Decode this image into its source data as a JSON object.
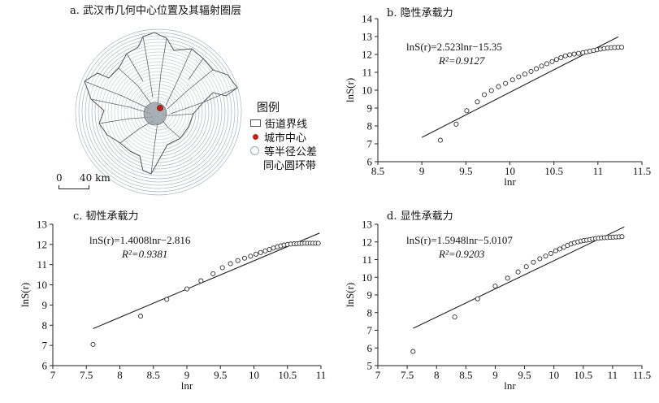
{
  "map_panel": {
    "title": "a. 武汉市几何中心位置及其辐射圈层",
    "legend": {
      "title": "图例",
      "items": [
        {
          "label": "街道界线",
          "icon": "rectangle-outline-icon"
        },
        {
          "label": "城市中心",
          "icon": "red-dot-icon",
          "color": "#c0221a"
        },
        {
          "label": "等半径公差",
          "label2": "同心圆环带",
          "icon": "circle-outline-icon",
          "color": "#9aa9b3"
        }
      ]
    },
    "scalebar": {
      "start": "0",
      "end": "40 km"
    }
  },
  "chart_data": [
    {
      "type": "scatter",
      "title": "b. 隐性承载力",
      "equation": "lnS(r)=2.523lnr−15.35",
      "r2": "R²=0.9127",
      "xlabel": "lnr",
      "ylabel": "lnS(r)",
      "xlim": [
        8.5,
        11.5
      ],
      "ylim": [
        6,
        14
      ],
      "xticks": [
        8.5,
        9,
        9.5,
        10,
        10.5,
        11,
        11.5
      ],
      "yticks": [
        6,
        7,
        8,
        9,
        10,
        11,
        12,
        13,
        14
      ],
      "fit": {
        "slope": 2.523,
        "intercept": -15.35,
        "x": [
          9.0,
          11.23
        ]
      },
      "points": [
        [
          9.21,
          7.2
        ],
        [
          9.39,
          8.1
        ],
        [
          9.51,
          8.85
        ],
        [
          9.63,
          9.35
        ],
        [
          9.71,
          9.75
        ],
        [
          9.79,
          9.98
        ],
        [
          9.87,
          10.2
        ],
        [
          9.95,
          10.38
        ],
        [
          10.03,
          10.58
        ],
        [
          10.1,
          10.75
        ],
        [
          10.17,
          10.9
        ],
        [
          10.24,
          11.05
        ],
        [
          10.3,
          11.2
        ],
        [
          10.36,
          11.35
        ],
        [
          10.42,
          11.48
        ],
        [
          10.48,
          11.6
        ],
        [
          10.53,
          11.72
        ],
        [
          10.58,
          11.82
        ],
        [
          10.63,
          11.92
        ],
        [
          10.68,
          11.98
        ],
        [
          10.73,
          12.02
        ],
        [
          10.78,
          12.06
        ],
        [
          10.83,
          12.1
        ],
        [
          10.87,
          12.14
        ],
        [
          10.91,
          12.18
        ],
        [
          10.95,
          12.22
        ],
        [
          10.99,
          12.26
        ],
        [
          11.03,
          12.3
        ],
        [
          11.07,
          12.33
        ],
        [
          11.11,
          12.36
        ],
        [
          11.15,
          12.38
        ],
        [
          11.19,
          12.39
        ],
        [
          11.23,
          12.4
        ],
        [
          11.27,
          12.4
        ]
      ]
    },
    {
      "type": "scatter",
      "title": "c. 韧性承载力",
      "equation": "lnS(r)=1.4008lnr−2.816",
      "r2": "R²=0.9381",
      "xlabel": "lnr",
      "ylabel": "lnS(r)",
      "xlim": [
        7,
        11
      ],
      "ylim": [
        6,
        13
      ],
      "xticks": [
        7,
        7.5,
        8,
        8.5,
        9,
        9.5,
        10,
        10.5,
        11
      ],
      "yticks": [
        6,
        7,
        8,
        9,
        10,
        11,
        12,
        13
      ],
      "fit": {
        "slope": 1.4008,
        "intercept": -2.816,
        "x": [
          7.6,
          10.98
        ]
      },
      "points": [
        [
          7.6,
          7.05
        ],
        [
          8.31,
          8.45
        ],
        [
          8.7,
          9.28
        ],
        [
          9.0,
          9.8
        ],
        [
          9.21,
          10.2
        ],
        [
          9.39,
          10.55
        ],
        [
          9.53,
          10.85
        ],
        [
          9.65,
          11.05
        ],
        [
          9.76,
          11.2
        ],
        [
          9.86,
          11.32
        ],
        [
          9.95,
          11.42
        ],
        [
          10.03,
          11.52
        ],
        [
          10.1,
          11.6
        ],
        [
          10.17,
          11.68
        ],
        [
          10.23,
          11.75
        ],
        [
          10.29,
          11.82
        ],
        [
          10.35,
          11.88
        ],
        [
          10.4,
          11.93
        ],
        [
          10.45,
          11.97
        ],
        [
          10.5,
          12.0
        ],
        [
          10.55,
          12.02
        ],
        [
          10.6,
          12.03
        ],
        [
          10.64,
          12.04
        ],
        [
          10.68,
          12.05
        ],
        [
          10.72,
          12.05
        ],
        [
          10.76,
          12.06
        ],
        [
          10.8,
          12.06
        ],
        [
          10.84,
          12.06
        ],
        [
          10.88,
          12.06
        ],
        [
          10.92,
          12.06
        ],
        [
          10.96,
          12.06
        ]
      ]
    },
    {
      "type": "scatter",
      "title": "d. 显性承载力",
      "equation": "lnS(r)=1.5948lnr−5.0107",
      "r2": "R²=0.9203",
      "xlabel": "lnr",
      "ylabel": "lnS(r)",
      "xlim": [
        7,
        11.5
      ],
      "ylim": [
        5,
        13
      ],
      "xticks": [
        7,
        7.5,
        8,
        8.5,
        9,
        9.5,
        10,
        10.5,
        11,
        11.5
      ],
      "yticks": [
        5,
        6,
        7,
        8,
        9,
        10,
        11,
        12,
        13
      ],
      "fit": {
        "slope": 1.5948,
        "intercept": -5.0107,
        "x": [
          7.6,
          11.2
        ]
      },
      "points": [
        [
          7.6,
          5.8
        ],
        [
          8.31,
          7.75
        ],
        [
          8.7,
          8.78
        ],
        [
          9.0,
          9.5
        ],
        [
          9.21,
          9.95
        ],
        [
          9.39,
          10.3
        ],
        [
          9.53,
          10.6
        ],
        [
          9.65,
          10.85
        ],
        [
          9.76,
          11.05
        ],
        [
          9.86,
          11.2
        ],
        [
          9.95,
          11.35
        ],
        [
          10.03,
          11.5
        ],
        [
          10.1,
          11.6
        ],
        [
          10.17,
          11.7
        ],
        [
          10.23,
          11.8
        ],
        [
          10.29,
          11.88
        ],
        [
          10.35,
          11.95
        ],
        [
          10.41,
          12.0
        ],
        [
          10.46,
          12.05
        ],
        [
          10.51,
          12.08
        ],
        [
          10.56,
          12.1
        ],
        [
          10.61,
          12.13
        ],
        [
          10.66,
          12.16
        ],
        [
          10.71,
          12.19
        ],
        [
          10.76,
          12.21
        ],
        [
          10.81,
          12.23
        ],
        [
          10.86,
          12.24
        ],
        [
          10.91,
          12.25
        ],
        [
          10.96,
          12.26
        ],
        [
          11.01,
          12.27
        ],
        [
          11.06,
          12.28
        ],
        [
          11.11,
          12.29
        ],
        [
          11.16,
          12.3
        ]
      ]
    }
  ]
}
